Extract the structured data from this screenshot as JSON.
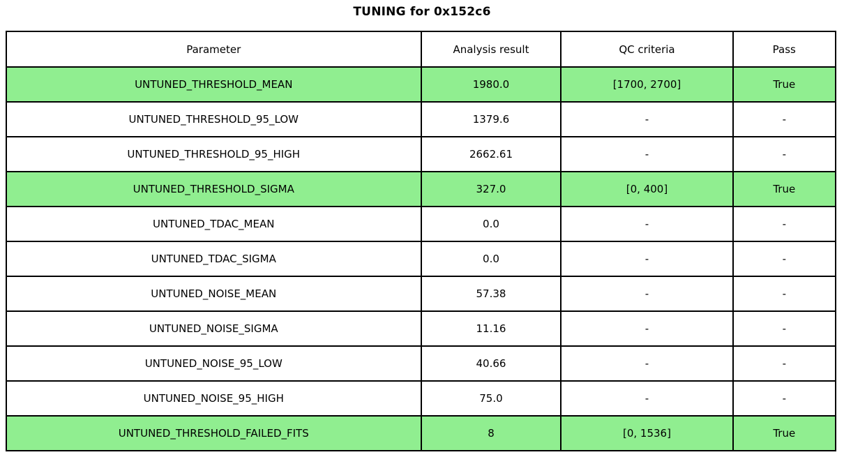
{
  "title": "TUNING for 0x152c6",
  "colors": {
    "highlight_row": "#90ee90",
    "border": "#000000",
    "background": "#ffffff",
    "text": "#000000"
  },
  "table": {
    "headers": [
      "Parameter",
      "Analysis result",
      "QC criteria",
      "Pass"
    ],
    "rows": [
      {
        "parameter": "UNTUNED_THRESHOLD_MEAN",
        "result": "1980.0",
        "qc": "[1700, 2700]",
        "pass": "True",
        "highlight": true
      },
      {
        "parameter": "UNTUNED_THRESHOLD_95_LOW",
        "result": "1379.6",
        "qc": "-",
        "pass": "-",
        "highlight": false
      },
      {
        "parameter": "UNTUNED_THRESHOLD_95_HIGH",
        "result": "2662.61",
        "qc": "-",
        "pass": "-",
        "highlight": false
      },
      {
        "parameter": "UNTUNED_THRESHOLD_SIGMA",
        "result": "327.0",
        "qc": "[0, 400]",
        "pass": "True",
        "highlight": true
      },
      {
        "parameter": "UNTUNED_TDAC_MEAN",
        "result": "0.0",
        "qc": "-",
        "pass": "-",
        "highlight": false
      },
      {
        "parameter": "UNTUNED_TDAC_SIGMA",
        "result": "0.0",
        "qc": "-",
        "pass": "-",
        "highlight": false
      },
      {
        "parameter": "UNTUNED_NOISE_MEAN",
        "result": "57.38",
        "qc": "-",
        "pass": "-",
        "highlight": false
      },
      {
        "parameter": "UNTUNED_NOISE_SIGMA",
        "result": "11.16",
        "qc": "-",
        "pass": "-",
        "highlight": false
      },
      {
        "parameter": "UNTUNED_NOISE_95_LOW",
        "result": "40.66",
        "qc": "-",
        "pass": "-",
        "highlight": false
      },
      {
        "parameter": "UNTUNED_NOISE_95_HIGH",
        "result": "75.0",
        "qc": "-",
        "pass": "-",
        "highlight": false
      },
      {
        "parameter": "UNTUNED_THRESHOLD_FAILED_FITS",
        "result": "8",
        "qc": "[0, 1536]",
        "pass": "True",
        "highlight": true
      }
    ],
    "column_widths_pct": [
      50.0,
      16.9,
      20.7,
      12.4
    ]
  },
  "chart_data": {
    "type": "table",
    "title": "TUNING for 0x152c6",
    "columns": [
      "Parameter",
      "Analysis result",
      "QC criteria",
      "Pass"
    ],
    "rows": [
      [
        "UNTUNED_THRESHOLD_MEAN",
        "1980.0",
        "[1700, 2700]",
        "True"
      ],
      [
        "UNTUNED_THRESHOLD_95_LOW",
        "1379.6",
        "-",
        "-"
      ],
      [
        "UNTUNED_THRESHOLD_95_HIGH",
        "2662.61",
        "-",
        "-"
      ],
      [
        "UNTUNED_THRESHOLD_SIGMA",
        "327.0",
        "[0, 400]",
        "True"
      ],
      [
        "UNTUNED_TDAC_MEAN",
        "0.0",
        "-",
        "-"
      ],
      [
        "UNTUNED_TDAC_SIGMA",
        "0.0",
        "-",
        "-"
      ],
      [
        "UNTUNED_NOISE_MEAN",
        "57.38",
        "-",
        "-"
      ],
      [
        "UNTUNED_NOISE_SIGMA",
        "11.16",
        "-",
        "-"
      ],
      [
        "UNTUNED_NOISE_95_LOW",
        "40.66",
        "-",
        "-"
      ],
      [
        "UNTUNED_NOISE_95_HIGH",
        "75.0",
        "-",
        "-"
      ],
      [
        "UNTUNED_THRESHOLD_FAILED_FITS",
        "8",
        "[0, 1536]",
        "True"
      ]
    ],
    "highlighted_row_indices": [
      0,
      3,
      10
    ],
    "highlight_color": "#90ee90"
  }
}
